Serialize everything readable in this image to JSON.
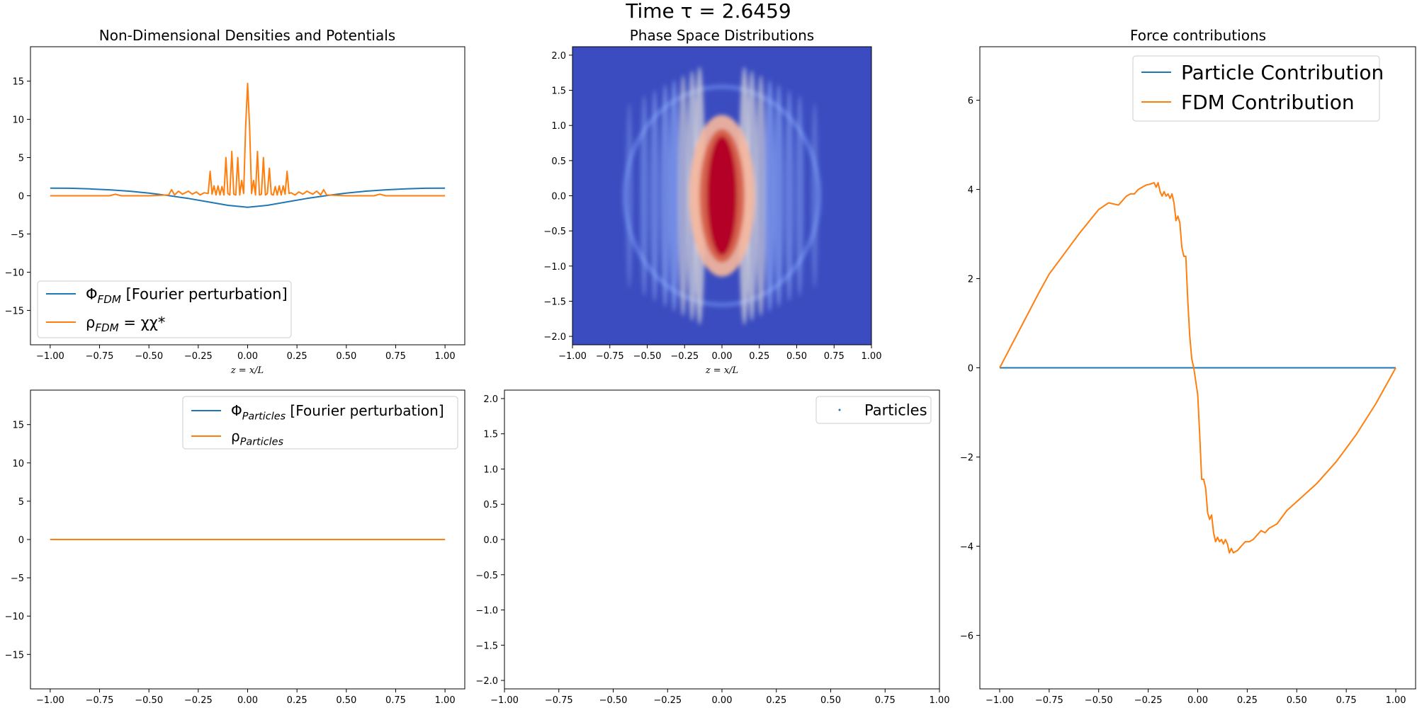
{
  "figure": {
    "suptitle": "Time τ = 2.6459",
    "colors": {
      "blue": "#1f77b4",
      "orange": "#ff7f0e",
      "bg_cold": "#3b4cc0",
      "mid": "#f2f2f2",
      "hot": "#b40426"
    }
  },
  "chart_data": [
    {
      "id": "fdm",
      "type": "line",
      "title": "Non-Dimensional Densities and Potentials",
      "xlabel": "z = x/L",
      "ylabel": "",
      "xlim": [
        -1.1,
        1.1
      ],
      "ylim": [
        -19.5,
        19.5
      ],
      "xticks": [
        -1.0,
        -0.75,
        -0.5,
        -0.25,
        0.0,
        0.25,
        0.5,
        0.75,
        1.0
      ],
      "xtick_labels": [
        "−1.00",
        "−0.75",
        "−0.50",
        "−0.25",
        "0.00",
        "0.25",
        "0.50",
        "0.75",
        "1.00"
      ],
      "yticks": [
        -15,
        -10,
        -5,
        0,
        5,
        10,
        15
      ],
      "ytick_labels": [
        "−15",
        "−10",
        "−5",
        "0",
        "5",
        "10",
        "15"
      ],
      "legend_position": "lower-left",
      "series": [
        {
          "name": "Φ_FDM [Fourier perturbation]",
          "legend_main": "Φ",
          "legend_sub": "FDM",
          "legend_rest": " [Fourier perturbation]",
          "color": "#1f77b4",
          "x": [
            -1.0,
            -0.9,
            -0.8,
            -0.7,
            -0.6,
            -0.5,
            -0.4,
            -0.3,
            -0.2,
            -0.1,
            0.0,
            0.1,
            0.2,
            0.3,
            0.4,
            0.5,
            0.6,
            0.7,
            0.8,
            0.9,
            1.0
          ],
          "y": [
            1.0,
            0.98,
            0.9,
            0.78,
            0.6,
            0.35,
            0.02,
            -0.35,
            -0.8,
            -1.25,
            -1.5,
            -1.25,
            -0.8,
            -0.35,
            0.02,
            0.35,
            0.6,
            0.78,
            0.9,
            0.98,
            1.0
          ]
        },
        {
          "name": "ρ_FDM = χχ*",
          "legend_main": "ρ",
          "legend_sub": "FDM",
          "legend_rest": " = χχ*",
          "color": "#ff7f0e",
          "x": [
            -1.0,
            -0.7,
            -0.67,
            -0.64,
            -0.5,
            -0.4,
            -0.385,
            -0.37,
            -0.35,
            -0.33,
            -0.3,
            -0.28,
            -0.26,
            -0.24,
            -0.22,
            -0.2,
            -0.19,
            -0.18,
            -0.17,
            -0.16,
            -0.15,
            -0.14,
            -0.13,
            -0.12,
            -0.11,
            -0.1,
            -0.09,
            -0.08,
            -0.07,
            -0.06,
            -0.05,
            -0.04,
            -0.03,
            -0.02,
            -0.01,
            0.0,
            0.01,
            0.02,
            0.03,
            0.04,
            0.05,
            0.06,
            0.07,
            0.08,
            0.09,
            0.1,
            0.11,
            0.12,
            0.13,
            0.14,
            0.15,
            0.16,
            0.17,
            0.18,
            0.19,
            0.2,
            0.21,
            0.22,
            0.24,
            0.26,
            0.28,
            0.3,
            0.33,
            0.35,
            0.37,
            0.385,
            0.4,
            0.5,
            0.64,
            0.67,
            0.7,
            1.0
          ],
          "y": [
            0.0,
            0.0,
            0.2,
            0.0,
            0.0,
            0.1,
            0.8,
            0.1,
            0.6,
            0.2,
            0.6,
            0.2,
            0.5,
            0.1,
            0.4,
            0.3,
            3.2,
            0.2,
            1.3,
            0.1,
            1.3,
            0.1,
            1.2,
            0.1,
            5.0,
            0.3,
            0.1,
            5.8,
            0.2,
            0.1,
            5.0,
            0.1,
            2.0,
            0.3,
            9.0,
            14.7,
            9.0,
            0.3,
            2.0,
            0.1,
            5.8,
            0.1,
            0.2,
            5.0,
            0.1,
            0.3,
            3.6,
            0.2,
            0.1,
            1.2,
            0.1,
            1.3,
            0.1,
            1.3,
            0.2,
            3.2,
            0.3,
            0.4,
            0.1,
            0.5,
            0.2,
            0.6,
            0.2,
            0.6,
            0.1,
            0.8,
            0.1,
            0.0,
            0.0,
            0.2,
            0.0,
            0.0
          ]
        }
      ]
    },
    {
      "id": "phase_fdm",
      "type": "heatmap",
      "title": "Phase Space Distributions",
      "xlabel": "z = x/L",
      "ylabel": "",
      "xlim": [
        -1.0,
        1.0
      ],
      "ylim": [
        -2.12,
        2.12
      ],
      "xticks": [
        -1.0,
        -0.75,
        -0.5,
        -0.25,
        0.0,
        0.25,
        0.5,
        0.75,
        1.0
      ],
      "xtick_labels": [
        "−1.00",
        "−0.75",
        "−0.50",
        "−0.25",
        "0.00",
        "0.25",
        "0.50",
        "0.75",
        "1.00"
      ],
      "yticks": [
        -2.0,
        -1.5,
        -1.0,
        -0.5,
        0.0,
        0.5,
        1.0,
        1.5,
        2.0
      ],
      "ytick_labels": [
        "−2.0",
        "−1.5",
        "−1.0",
        "−0.5",
        "0.0",
        "0.5",
        "1.0",
        "1.5",
        "2.0"
      ],
      "colormap": "coolwarm"
    },
    {
      "id": "particles",
      "type": "line",
      "title": "",
      "xlabel": "",
      "ylabel": "",
      "xlim": [
        -1.1,
        1.1
      ],
      "ylim": [
        -19.5,
        19.5
      ],
      "xticks": [
        -1.0,
        -0.75,
        -0.5,
        -0.25,
        0.0,
        0.25,
        0.5,
        0.75,
        1.0
      ],
      "xtick_labels": [
        "−1.00",
        "−0.75",
        "−0.50",
        "−0.25",
        "0.00",
        "0.25",
        "0.50",
        "0.75",
        "1.00"
      ],
      "yticks": [
        -15,
        -10,
        -5,
        0,
        5,
        10,
        15
      ],
      "ytick_labels": [
        "−15",
        "−10",
        "−5",
        "0",
        "5",
        "10",
        "15"
      ],
      "legend_position": "upper-right",
      "series": [
        {
          "name": "Φ_Particles [Fourier perturbation]",
          "legend_main": "Φ",
          "legend_sub": "Particles",
          "legend_rest": " [Fourier perturbation]",
          "color": "#1f77b4",
          "x": [
            -1.0,
            1.0
          ],
          "y": [
            0.0,
            0.0
          ]
        },
        {
          "name": "ρ_Particles",
          "legend_main": "ρ",
          "legend_sub": "Particles",
          "legend_rest": "",
          "color": "#ff7f0e",
          "x": [
            -1.0,
            1.0
          ],
          "y": [
            0.0,
            0.0
          ]
        }
      ]
    },
    {
      "id": "phase_particles",
      "type": "scatter",
      "title": "",
      "xlabel": "",
      "ylabel": "",
      "xlim": [
        -1.0,
        1.0
      ],
      "ylim": [
        -2.12,
        2.12
      ],
      "xticks": [
        -1.0,
        -0.75,
        -0.5,
        -0.25,
        0.0,
        0.25,
        0.5,
        0.75,
        1.0
      ],
      "xtick_labels": [
        "−1.00",
        "−0.75",
        "−0.50",
        "−0.25",
        "0.00",
        "0.25",
        "0.50",
        "0.75",
        "1.00"
      ],
      "yticks": [
        -2.0,
        -1.5,
        -1.0,
        -0.5,
        0.0,
        0.5,
        1.0,
        1.5,
        2.0
      ],
      "ytick_labels": [
        "−2.0",
        "−1.5",
        "−1.0",
        "−0.5",
        "0.0",
        "0.5",
        "1.0",
        "1.5",
        "2.0"
      ],
      "legend_position": "upper-right",
      "series": [
        {
          "name": "Particles",
          "color": "#1f77b4",
          "x": [],
          "y": []
        }
      ]
    },
    {
      "id": "force",
      "type": "line",
      "title": "Force contributions",
      "xlabel": "",
      "ylabel": "",
      "xlim": [
        -1.1,
        1.1
      ],
      "ylim": [
        -7.2,
        7.2
      ],
      "xticks": [
        -1.0,
        -0.75,
        -0.5,
        -0.25,
        0.0,
        0.25,
        0.5,
        0.75,
        1.0
      ],
      "xtick_labels": [
        "−1.00",
        "−0.75",
        "−0.50",
        "−0.25",
        "0.00",
        "0.25",
        "0.50",
        "0.75",
        "1.00"
      ],
      "yticks": [
        -6,
        -4,
        -2,
        0,
        2,
        4,
        6
      ],
      "ytick_labels": [
        "−6",
        "−4",
        "−2",
        "0",
        "2",
        "4",
        "6"
      ],
      "legend_position": "upper-right",
      "series": [
        {
          "name": "Particle Contribution",
          "color": "#1f77b4",
          "x": [
            -1.0,
            1.0
          ],
          "y": [
            0.0,
            0.0
          ]
        },
        {
          "name": "FDM Contribution",
          "color": "#ff7f0e",
          "x": [
            -1.0,
            -0.9,
            -0.8,
            -0.75,
            -0.7,
            -0.6,
            -0.5,
            -0.45,
            -0.4,
            -0.38,
            -0.36,
            -0.34,
            -0.32,
            -0.3,
            -0.28,
            -0.26,
            -0.24,
            -0.22,
            -0.21,
            -0.2,
            -0.19,
            -0.18,
            -0.17,
            -0.16,
            -0.15,
            -0.14,
            -0.13,
            -0.12,
            -0.11,
            -0.1,
            -0.09,
            -0.08,
            -0.07,
            -0.06,
            -0.05,
            -0.04,
            -0.03,
            -0.02,
            -0.01,
            0.0,
            0.01,
            0.02,
            0.03,
            0.04,
            0.05,
            0.06,
            0.07,
            0.08,
            0.09,
            0.1,
            0.11,
            0.12,
            0.13,
            0.14,
            0.15,
            0.16,
            0.17,
            0.18,
            0.19,
            0.2,
            0.21,
            0.22,
            0.24,
            0.26,
            0.28,
            0.3,
            0.32,
            0.34,
            0.36,
            0.38,
            0.4,
            0.45,
            0.5,
            0.6,
            0.7,
            0.75,
            0.8,
            0.9,
            1.0
          ],
          "y": [
            0.0,
            0.85,
            1.7,
            2.1,
            2.4,
            3.0,
            3.55,
            3.7,
            3.65,
            3.75,
            3.85,
            3.9,
            3.9,
            4.0,
            4.05,
            4.1,
            4.12,
            4.15,
            4.05,
            4.15,
            3.95,
            3.85,
            3.95,
            3.85,
            3.9,
            3.8,
            3.9,
            3.7,
            3.3,
            3.4,
            3.25,
            2.7,
            2.5,
            2.5,
            1.5,
            0.7,
            0.2,
            0.0,
            -0.3,
            -0.6,
            -1.5,
            -2.5,
            -2.5,
            -2.7,
            -3.25,
            -3.4,
            -3.3,
            -3.7,
            -3.9,
            -3.8,
            -3.9,
            -3.85,
            -3.95,
            -3.85,
            -3.95,
            -4.15,
            -4.05,
            -4.15,
            -4.12,
            -4.1,
            -4.05,
            -4.0,
            -3.9,
            -3.9,
            -3.85,
            -3.75,
            -3.65,
            -3.7,
            -3.6,
            -3.55,
            -3.5,
            -3.2,
            -3.0,
            -2.6,
            -2.1,
            -1.8,
            -1.5,
            -0.8,
            0.0
          ]
        }
      ]
    }
  ]
}
